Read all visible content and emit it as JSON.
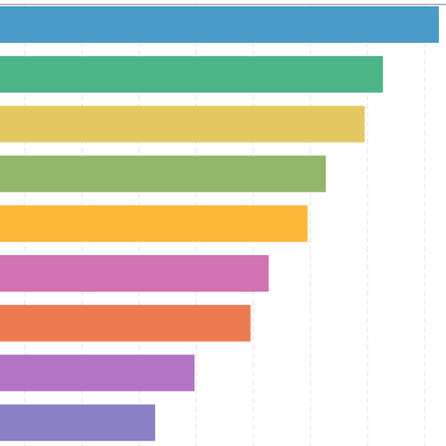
{
  "chart_data": {
    "type": "barh",
    "categories": [
      null,
      null,
      null,
      null,
      null,
      null,
      null,
      null,
      null
    ],
    "values": [
      8.25,
      7.27,
      6.95,
      6.27,
      5.95,
      5.27,
      4.95,
      3.97,
      3.28
    ],
    "colors": [
      "#4a9cc8",
      "#4bb587",
      "#e4c963",
      "#93b76a",
      "#fdb83a",
      "#d274b3",
      "#ec7b4f",
      "#b474c4",
      "#8a81c6"
    ],
    "xlim": [
      0.5625,
      8.375
    ],
    "xticks": [
      1,
      2,
      3,
      4,
      5,
      6,
      7,
      8
    ],
    "grid": true
  }
}
